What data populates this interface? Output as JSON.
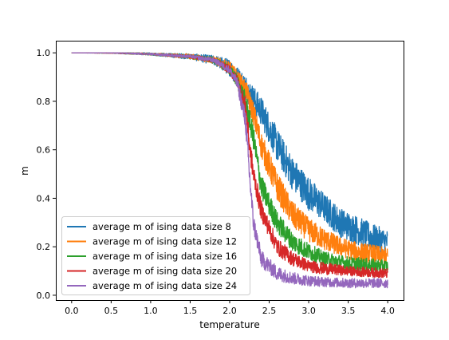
{
  "chart_data": {
    "type": "line",
    "title": "",
    "xlabel": "temperature",
    "ylabel": "m",
    "xlim": [
      -0.2,
      4.2
    ],
    "ylim": [
      -0.02,
      1.05
    ],
    "xticks": [
      0.0,
      0.5,
      1.0,
      1.5,
      2.0,
      2.5,
      3.0,
      3.5,
      4.0
    ],
    "xtick_labels": [
      "0.0",
      "0.5",
      "1.0",
      "1.5",
      "2.0",
      "2.5",
      "3.0",
      "3.5",
      "4.0"
    ],
    "yticks": [
      0.0,
      0.2,
      0.4,
      0.6,
      0.8,
      1.0
    ],
    "ytick_labels": [
      "0.0",
      "0.2",
      "0.4",
      "0.6",
      "0.8",
      "1.0"
    ],
    "grid": false,
    "legend_position": "lower-left",
    "x_range": [
      0.0,
      4.0
    ],
    "series": [
      {
        "name": "average m of ising data size 8",
        "color": "#1f77b4",
        "x": [
          0.0,
          0.5,
          1.0,
          1.5,
          1.8,
          2.0,
          2.2,
          2.4,
          2.6,
          2.8,
          3.0,
          3.2,
          3.4,
          3.6,
          3.8,
          4.0
        ],
        "values": [
          1.0,
          1.0,
          0.995,
          0.985,
          0.97,
          0.94,
          0.86,
          0.76,
          0.62,
          0.5,
          0.42,
          0.36,
          0.3,
          0.27,
          0.24,
          0.22
        ],
        "noise": [
          0.0,
          0.002,
          0.005,
          0.012,
          0.02,
          0.035,
          0.05,
          0.06,
          0.07,
          0.07,
          0.07,
          0.06,
          0.06,
          0.06,
          0.055,
          0.05
        ]
      },
      {
        "name": "average m of ising data size 12",
        "color": "#ff7f0e",
        "x": [
          0.0,
          0.5,
          1.0,
          1.5,
          1.8,
          2.0,
          2.2,
          2.3,
          2.4,
          2.6,
          2.8,
          3.0,
          3.2,
          3.4,
          3.6,
          3.8,
          4.0
        ],
        "values": [
          1.0,
          1.0,
          0.995,
          0.985,
          0.97,
          0.94,
          0.85,
          0.75,
          0.62,
          0.45,
          0.33,
          0.27,
          0.23,
          0.2,
          0.18,
          0.17,
          0.16
        ],
        "noise": [
          0.0,
          0.002,
          0.004,
          0.01,
          0.015,
          0.025,
          0.04,
          0.05,
          0.055,
          0.06,
          0.055,
          0.05,
          0.045,
          0.04,
          0.04,
          0.04,
          0.035
        ]
      },
      {
        "name": "average m of ising data size 16",
        "color": "#2ca02c",
        "x": [
          0.0,
          0.5,
          1.0,
          1.5,
          1.8,
          2.0,
          2.1,
          2.2,
          2.3,
          2.4,
          2.6,
          2.8,
          3.0,
          3.2,
          3.5,
          4.0
        ],
        "values": [
          1.0,
          1.0,
          0.995,
          0.985,
          0.97,
          0.93,
          0.88,
          0.8,
          0.65,
          0.45,
          0.3,
          0.22,
          0.18,
          0.15,
          0.13,
          0.12
        ],
        "noise": [
          0.0,
          0.002,
          0.004,
          0.008,
          0.012,
          0.02,
          0.03,
          0.04,
          0.05,
          0.05,
          0.045,
          0.04,
          0.035,
          0.03,
          0.03,
          0.025
        ]
      },
      {
        "name": "average m of ising data size 20",
        "color": "#d62728",
        "x": [
          0.0,
          0.5,
          1.0,
          1.5,
          1.8,
          2.0,
          2.1,
          2.2,
          2.25,
          2.3,
          2.4,
          2.6,
          2.8,
          3.0,
          3.2,
          3.5,
          4.0
        ],
        "values": [
          1.0,
          1.0,
          0.995,
          0.985,
          0.97,
          0.93,
          0.88,
          0.78,
          0.62,
          0.5,
          0.35,
          0.2,
          0.15,
          0.12,
          0.11,
          0.1,
          0.09
        ],
        "noise": [
          0.0,
          0.002,
          0.003,
          0.007,
          0.01,
          0.018,
          0.025,
          0.035,
          0.045,
          0.045,
          0.04,
          0.035,
          0.03,
          0.025,
          0.025,
          0.02,
          0.02
        ]
      },
      {
        "name": "average m of ising data size 24",
        "color": "#9467bd",
        "x": [
          0.0,
          0.5,
          1.0,
          1.5,
          1.8,
          2.0,
          2.1,
          2.2,
          2.25,
          2.3,
          2.4,
          2.6,
          2.8,
          3.0,
          3.2,
          3.5,
          4.0
        ],
        "values": [
          1.0,
          1.0,
          0.995,
          0.985,
          0.97,
          0.93,
          0.87,
          0.72,
          0.5,
          0.3,
          0.15,
          0.09,
          0.07,
          0.06,
          0.055,
          0.05,
          0.05
        ],
        "noise": [
          0.0,
          0.002,
          0.003,
          0.006,
          0.01,
          0.015,
          0.025,
          0.04,
          0.05,
          0.04,
          0.035,
          0.03,
          0.025,
          0.022,
          0.02,
          0.02,
          0.02
        ]
      }
    ]
  }
}
